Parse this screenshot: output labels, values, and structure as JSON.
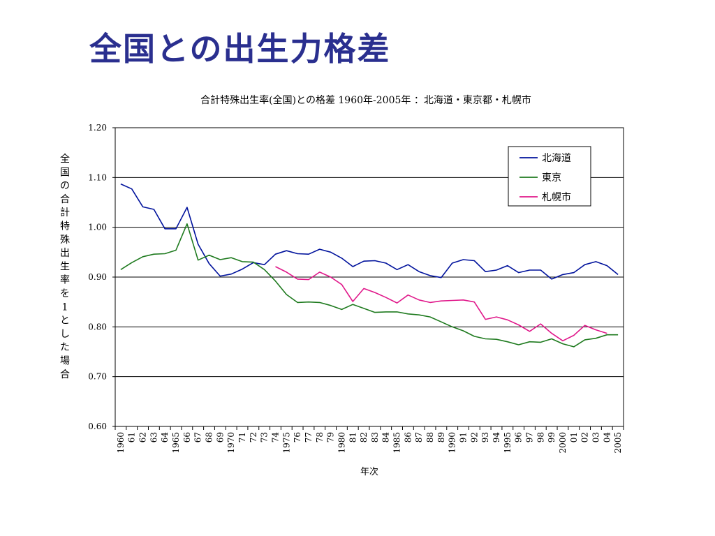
{
  "slide": {
    "title": "全国との出生力格差"
  },
  "chart_data": {
    "type": "line",
    "title": "合計特殊出生率(全国)との格差 1960年-2005年 ：北海道・東京都・札幌市",
    "xlabel": "年次",
    "ylabel": "全国の合計特殊出生率を1とした場合",
    "ylim": [
      0.6,
      1.2
    ],
    "yticks": [
      "0.60",
      "0.70",
      "0.80",
      "0.90",
      "1.00",
      "1.10",
      "1.20"
    ],
    "grid": true,
    "legend_position": "top-right",
    "x": [
      1960,
      1961,
      1962,
      1963,
      1964,
      1965,
      1966,
      1967,
      1968,
      1969,
      1970,
      1971,
      1972,
      1973,
      1974,
      1975,
      1976,
      1977,
      1978,
      1979,
      1980,
      1981,
      1982,
      1983,
      1984,
      1985,
      1986,
      1987,
      1988,
      1989,
      1990,
      1991,
      1992,
      1993,
      1994,
      1995,
      1996,
      1997,
      1998,
      1999,
      2000,
      2001,
      2002,
      2003,
      2004,
      2005
    ],
    "xtick_labels": [
      "1960",
      "61",
      "62",
      "63",
      "64",
      "1965",
      "66",
      "67",
      "68",
      "69",
      "1970",
      "71",
      "72",
      "73",
      "74",
      "1975",
      "76",
      "77",
      "78",
      "79",
      "1980",
      "81",
      "82",
      "83",
      "84",
      "1985",
      "86",
      "87",
      "88",
      "89",
      "1990",
      "91",
      "92",
      "93",
      "94",
      "1995",
      "96",
      "97",
      "98",
      "99",
      "2000",
      "01",
      "02",
      "03",
      "04",
      "2005"
    ],
    "series": [
      {
        "name": "北海道",
        "color": "#00129c",
        "values": [
          1.087,
          1.077,
          1.041,
          1.036,
          0.997,
          0.997,
          1.04,
          0.966,
          0.927,
          0.902,
          0.906,
          0.916,
          0.929,
          0.925,
          0.946,
          0.953,
          0.947,
          0.946,
          0.956,
          0.95,
          0.938,
          0.921,
          0.932,
          0.933,
          0.928,
          0.915,
          0.925,
          0.911,
          0.903,
          0.899,
          0.928,
          0.935,
          0.933,
          0.911,
          0.914,
          0.923,
          0.909,
          0.914,
          0.914,
          0.896,
          0.905,
          0.909,
          0.925,
          0.931,
          0.923,
          0.905
        ]
      },
      {
        "name": "東京",
        "color": "#1e7a1e",
        "values": [
          0.915,
          0.929,
          0.941,
          0.946,
          0.947,
          0.954,
          1.007,
          0.934,
          0.944,
          0.935,
          0.939,
          0.931,
          0.93,
          0.915,
          0.892,
          0.865,
          0.849,
          0.85,
          0.849,
          0.843,
          0.835,
          0.845,
          0.837,
          0.829,
          0.83,
          0.83,
          0.826,
          0.824,
          0.82,
          0.81,
          0.8,
          0.792,
          0.781,
          0.776,
          0.775,
          0.77,
          0.764,
          0.77,
          0.769,
          0.776,
          0.766,
          0.76,
          0.774,
          0.777,
          0.784,
          0.784
        ]
      },
      {
        "name": "札幌市",
        "color": "#e0188a",
        "values": [
          null,
          null,
          null,
          null,
          null,
          null,
          null,
          null,
          null,
          null,
          null,
          null,
          null,
          null,
          0.921,
          0.91,
          0.896,
          0.895,
          0.91,
          0.9,
          0.885,
          0.851,
          0.877,
          0.869,
          0.859,
          0.848,
          0.864,
          0.854,
          0.849,
          0.852,
          0.853,
          0.854,
          0.85,
          0.815,
          0.82,
          0.814,
          0.804,
          0.791,
          0.806,
          0.787,
          0.772,
          0.783,
          0.803,
          0.794,
          0.787,
          null
        ]
      }
    ]
  }
}
